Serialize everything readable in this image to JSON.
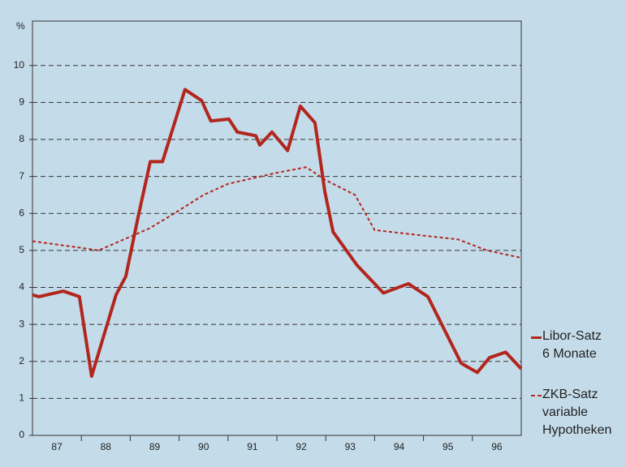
{
  "chart_data": {
    "type": "line",
    "y_unit_label": "%",
    "xlim": [
      87,
      97
    ],
    "xticks": [
      {
        "value": 87.5,
        "label": "87"
      },
      {
        "value": 88.5,
        "label": "88"
      },
      {
        "value": 89.5,
        "label": "89"
      },
      {
        "value": 90.5,
        "label": "90"
      },
      {
        "value": 91.5,
        "label": "91"
      },
      {
        "value": 92.5,
        "label": "92"
      },
      {
        "value": 93.5,
        "label": "93"
      },
      {
        "value": 94.5,
        "label": "94"
      },
      {
        "value": 95.5,
        "label": "95"
      },
      {
        "value": 96.5,
        "label": "96"
      }
    ],
    "ylim": [
      0,
      11.2
    ],
    "yticks": [
      0,
      1,
      2,
      3,
      4,
      5,
      6,
      7,
      8,
      9,
      10
    ],
    "grid": true,
    "series": [
      {
        "name": "Libor-Satz\n6 Monate",
        "color": "#b3261e",
        "style": "solid",
        "x": [
          87.0,
          87.13,
          87.63,
          87.96,
          88.21,
          88.46,
          88.71,
          88.91,
          89.16,
          89.41,
          89.66,
          90.12,
          90.46,
          90.65,
          91.02,
          91.19,
          91.57,
          91.65,
          91.9,
          92.22,
          92.48,
          92.78,
          92.98,
          93.15,
          93.64,
          94.18,
          94.69,
          95.09,
          95.77,
          96.1,
          96.35,
          96.68,
          97.0
        ],
        "values": [
          3.8,
          3.75,
          3.9,
          3.75,
          1.6,
          2.7,
          3.8,
          4.3,
          5.9,
          7.4,
          7.4,
          9.35,
          9.05,
          8.5,
          8.55,
          8.2,
          8.1,
          7.85,
          8.2,
          7.7,
          8.9,
          8.45,
          6.6,
          5.5,
          4.6,
          3.85,
          4.1,
          3.75,
          1.95,
          1.7,
          2.1,
          2.25,
          1.8
        ]
      },
      {
        "name": "ZKB-Satz\nvariable\nHypotheken",
        "color": "#b3261e",
        "style": "dashed",
        "x": [
          87.0,
          88.1,
          88.35,
          89.4,
          89.9,
          90.5,
          91.0,
          92.0,
          92.6,
          93.0,
          93.6,
          94.0,
          95.0,
          95.7,
          96.3,
          97.0
        ],
        "values": [
          5.25,
          5.05,
          5.0,
          5.6,
          6.0,
          6.5,
          6.8,
          7.1,
          7.25,
          6.9,
          6.5,
          5.55,
          5.4,
          5.3,
          5.0,
          4.8
        ]
      }
    ]
  }
}
